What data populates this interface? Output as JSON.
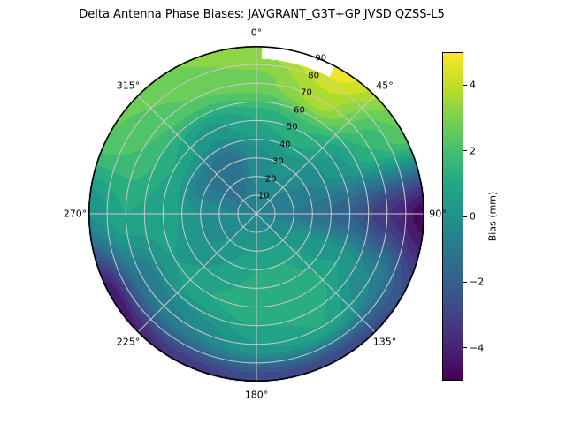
{
  "title": "Delta Antenna Phase Biases: JAVGRANT_G3T+GP JVSD QZSS-L5",
  "chart_data": {
    "type": "polar_contour",
    "title": "Delta Antenna Phase Biases: JAVGRANT_G3T+GP JVSD QZSS-L5",
    "colormap": "viridis",
    "vmin": -5,
    "vmax": 5,
    "contour_level_step_mm": 0.5,
    "grid_color": "#cccccc",
    "azimuth_ticks": [
      {
        "angle_deg": 0,
        "label": "0°"
      },
      {
        "angle_deg": 45,
        "label": "45°"
      },
      {
        "angle_deg": 90,
        "label": "90°"
      },
      {
        "angle_deg": 135,
        "label": "135°"
      },
      {
        "angle_deg": 180,
        "label": "180°"
      },
      {
        "angle_deg": 225,
        "label": "225°"
      },
      {
        "angle_deg": 270,
        "label": "270°"
      },
      {
        "angle_deg": 315,
        "label": "315°"
      }
    ],
    "radial_ticks": [
      10,
      20,
      30,
      40,
      50,
      60,
      70,
      80,
      90
    ],
    "radial_max": 90,
    "radial_label_angle_deg": 22.5,
    "colorbar": {
      "label": "Bias (mm)",
      "ticks": [
        {
          "value": 4,
          "label": "4"
        },
        {
          "value": 2,
          "label": "2"
        },
        {
          "value": 0,
          "label": "0"
        },
        {
          "value": -2,
          "label": "−2"
        },
        {
          "value": -4,
          "label": "−4"
        }
      ]
    },
    "viridis_stops": [
      [
        0.0,
        "#440154"
      ],
      [
        0.1,
        "#482475"
      ],
      [
        0.2,
        "#414487"
      ],
      [
        0.3,
        "#355f8d"
      ],
      [
        0.4,
        "#2a788e"
      ],
      [
        0.5,
        "#21918c"
      ],
      [
        0.6,
        "#22a884"
      ],
      [
        0.7,
        "#44bf70"
      ],
      [
        0.8,
        "#7ad151"
      ],
      [
        0.9,
        "#bddf26"
      ],
      [
        1.0,
        "#fde725"
      ]
    ],
    "field": {
      "azimuth_deg": [
        0,
        30,
        60,
        90,
        120,
        150,
        180,
        210,
        240,
        270,
        300,
        330
      ],
      "radius": [
        0,
        10,
        30,
        50,
        70,
        90
      ],
      "bias_mm": [
        [
          -0.5,
          -0.5,
          -0.5,
          -0.5,
          -0.5,
          -0.5,
          -0.5,
          -0.5,
          -0.5,
          -0.5,
          -0.5,
          -0.5
        ],
        [
          -0.5,
          -0.4,
          -0.6,
          -0.8,
          -0.3,
          0.0,
          0.0,
          0.0,
          -0.3,
          -0.5,
          -1.0,
          -1.0
        ],
        [
          -0.2,
          0.2,
          -0.5,
          -1.2,
          0.3,
          1.0,
          1.0,
          0.5,
          0.0,
          0.0,
          -1.0,
          -1.5
        ],
        [
          1.0,
          1.5,
          0.3,
          -2.0,
          0.5,
          1.5,
          1.5,
          1.0,
          0.5,
          0.8,
          1.0,
          0.3
        ],
        [
          2.8,
          3.8,
          1.5,
          -3.5,
          -0.5,
          1.0,
          0.5,
          -0.5,
          -1.0,
          1.0,
          2.0,
          2.5
        ],
        [
          3.5,
          4.8,
          2.5,
          -4.8,
          -2.5,
          -3.0,
          -3.0,
          -3.5,
          -4.5,
          0.0,
          2.5,
          3.0
        ]
      ]
    },
    "missing_region": {
      "azimuth_start_deg": 2,
      "azimuth_end_deg": 28,
      "radius_inner": 83
    }
  }
}
